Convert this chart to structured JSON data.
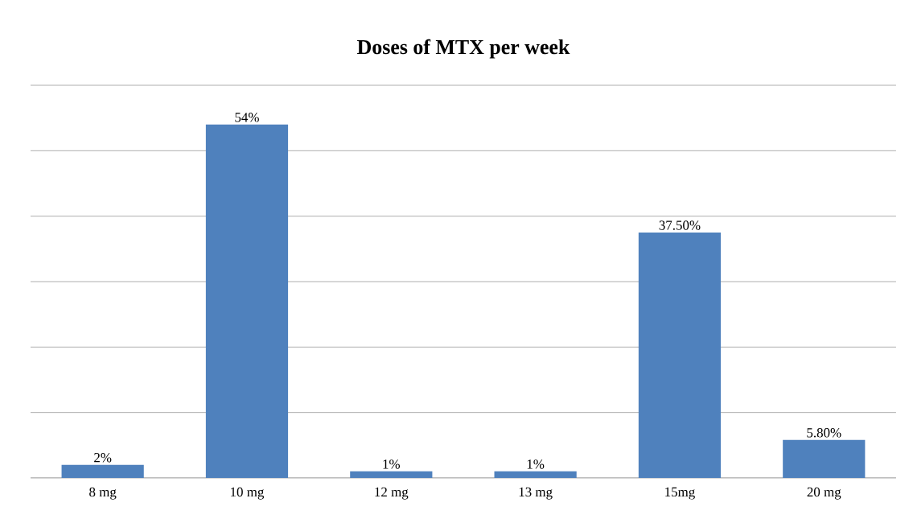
{
  "chart_data": {
    "type": "bar",
    "title": "Doses of MTX per week",
    "categories": [
      "8 mg",
      "10 mg",
      "12 mg",
      "13 mg",
      "15mg",
      "20 mg"
    ],
    "values": [
      2,
      54,
      1,
      1,
      37.5,
      5.8
    ],
    "value_labels": [
      "2%",
      "54%",
      "1%",
      "1%",
      "37.50%",
      "5.80%"
    ],
    "color": "#4f81bd",
    "ylim": [
      0,
      60
    ],
    "yticks": [
      {
        "value": 0,
        "label": null
      },
      {
        "value": 10,
        "label": null
      },
      {
        "value": 20,
        "label": null
      },
      {
        "value": 30,
        "label": null
      },
      {
        "value": 40,
        "label": null
      },
      {
        "value": 50,
        "label": null
      },
      {
        "value": 60,
        "label": null
      }
    ],
    "grid": "y",
    "tick_labels": "x"
  }
}
